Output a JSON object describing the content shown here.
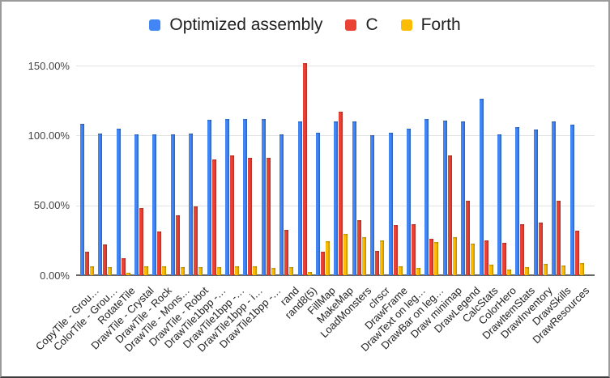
{
  "window": {
    "background": "#ffffff",
    "border_color": "#9b9b9b"
  },
  "chart_data": {
    "type": "bar",
    "title": "",
    "legend_position": "top",
    "grid": true,
    "y_axis": {
      "min": 0,
      "max": 150,
      "ticks": [
        {
          "value": 0,
          "label": "0.00%"
        },
        {
          "value": 50,
          "label": "50.00%"
        },
        {
          "value": 100,
          "label": "100.00%"
        },
        {
          "value": 150,
          "label": "150.00%"
        }
      ]
    },
    "categories": [
      "CopyTile - Grou…",
      "ColorTile - Grou…",
      "RotateTile",
      "DrawTile - Crystal",
      "DrawTile - Rock",
      "DrawTile - Mons…",
      "DrawTile - Robot",
      "DrawTile1bpp -…",
      "DrawTile1bpp -…",
      "DrawTile1bpp - i…",
      "DrawTile1bpp -…",
      "rand",
      "rand8(5)",
      "FillMap",
      "MakeMap",
      "LoadMonsters",
      "clrscr",
      "DrawFrame",
      "DrawText on leg…",
      "DrawBar on leg…",
      "Draw minimap",
      "DrawLegend",
      "CalcStats",
      "ColorHero",
      "DrawItemStats",
      "DrawInventory",
      "DrawSkills",
      "DrawResources"
    ],
    "series": [
      {
        "name": "Optimized assembly",
        "color": "#4285f4",
        "values": [
          108.5,
          101.5,
          105,
          100.5,
          101,
          101,
          101.5,
          111,
          111.5,
          112,
          111.5,
          100.5,
          110,
          102,
          110,
          110,
          100,
          102,
          105,
          112,
          110.5,
          110,
          126,
          101,
          106,
          104,
          110,
          108
        ]
      },
      {
        "name": "C",
        "color": "#ea4335",
        "values": [
          17,
          22,
          12,
          48,
          31,
          43,
          49,
          83,
          85.5,
          84,
          84,
          32.5,
          151.5,
          17,
          117,
          39.5,
          17.5,
          36,
          36.5,
          26,
          85.5,
          53,
          25,
          23,
          36.5,
          37.5,
          53,
          32
        ]
      },
      {
        "name": "Forth",
        "color": "#fbbc04",
        "values": [
          6.5,
          6,
          2,
          6.5,
          6.5,
          6,
          6,
          6,
          6.5,
          6.5,
          5,
          6,
          2.5,
          24.5,
          29.5,
          27,
          25,
          6.5,
          5,
          24,
          27.5,
          22.5,
          7.5,
          4,
          6,
          8,
          7,
          8.5
        ]
      }
    ]
  }
}
